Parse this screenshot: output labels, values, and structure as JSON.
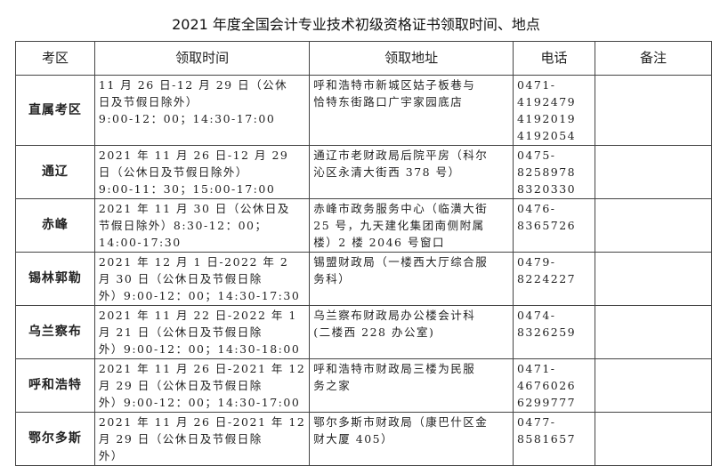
{
  "title": "2021 年度全国会计专业技术初级资格证书领取时间、地点",
  "headers": [
    "考区",
    "领取时间",
    "领取地址",
    "电话",
    "备注"
  ],
  "rows": [
    {
      "region": "直属考区",
      "time": [
        "11 月 26 日-12 月 29 日（公休",
        "日及节假日除外）",
        "9:00-12：00；14:30-17:00"
      ],
      "address": [
        "呼和浩特市新城区姑子板巷与",
        "恰特东街路口广宇家园底店"
      ],
      "phone": [
        "0471-",
        "4192479",
        "4192019",
        "4192054"
      ],
      "note": ""
    },
    {
      "region": "通辽",
      "time": [
        "2021 年 11 月 26 日-12 月 29",
        "日（公休日及节假日除外）",
        "9:00-11：30；15:00-17:00"
      ],
      "address": [
        "通辽市老财政局后院平房（科尔",
        "沁区永清大街西 378 号）"
      ],
      "phone": [
        "0475-",
        "8258978",
        "8320330"
      ],
      "note": ""
    },
    {
      "region": "赤峰",
      "time": [
        "2021 年 11 月 30 日（公休日及",
        "节假日除外）8:30-12：00；",
        "14:00-17:30"
      ],
      "address": [
        "赤峰市政务服务中心（临潢大街",
        "25 号，九天建化集团南侧附属",
        "楼）2 楼 2046 号窗口"
      ],
      "phone": [
        "0476-",
        "8365726"
      ],
      "note": ""
    },
    {
      "region": "锡林郭勒",
      "time": [
        "2021 年 12 月 1 日-2022 年 2",
        "月 30 日（公休日及节假日除",
        "外）9:00-12：00；14:30-17:30"
      ],
      "address": [
        "锡盟财政局（一楼西大厅综合服",
        "务科）"
      ],
      "phone": [
        "0479-",
        "8224227"
      ],
      "note": ""
    },
    {
      "region": "乌兰察布",
      "time": [
        "2021 年 11 月 22 日-2022 年 1",
        "月 21 日（公休日及节假日除",
        "外）9:00-12：00；14:30-18:00"
      ],
      "address": [
        "乌兰察布财政局办公楼会计科",
        "(二楼西 228 办公室)"
      ],
      "phone": [
        "0474-",
        "8326259"
      ],
      "note": ""
    },
    {
      "region": "呼和浩特",
      "time": [
        "2021 年 11 月 26 日-2021 年 12",
        "月 29 日（公休日及节假日除",
        "外）9:00-12：00；14:30-17:00"
      ],
      "address": [
        "呼和浩特市财政局三楼为民服",
        "务之家"
      ],
      "phone": [
        "0471-",
        "4676026",
        "6299777"
      ],
      "note": ""
    },
    {
      "region": "鄂尔多斯",
      "time": [
        "2021 年 11 月 26 日-2021 年 12",
        "月 29 日（公休日及节假日除",
        "外）"
      ],
      "address": [
        "鄂尔多斯市财政局（康巴什区金",
        "财大厦 405）"
      ],
      "phone": [
        "0477-",
        "8581657"
      ],
      "note": ""
    }
  ]
}
